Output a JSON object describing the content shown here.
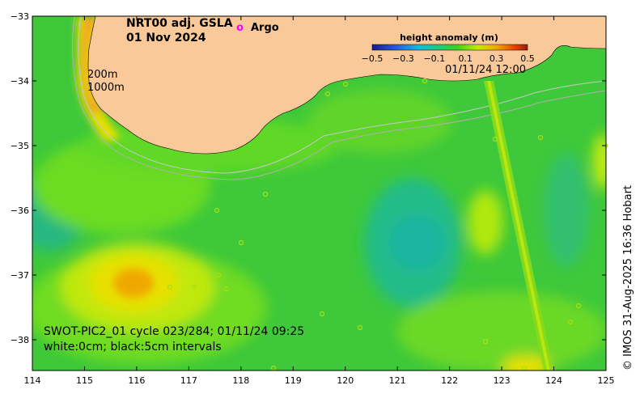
{
  "title": {
    "line1": "NRT00 adj. GSLA",
    "line2": "01 Nov 2024"
  },
  "legend": {
    "argo_symbol": "o",
    "argo_label": "Argo",
    "argo_color": "#ff00ff"
  },
  "colorbar": {
    "title": "height anomaly (m)",
    "ticks": [
      "−0.5",
      "−0.3",
      "−0.1",
      "0.1",
      "0.3",
      "0.5"
    ],
    "timestamp": "01/11/24 12:00"
  },
  "contours": {
    "label_200m": "200m",
    "label_1000m": "1000m"
  },
  "axes": {
    "x_ticks": [
      "114",
      "115",
      "116",
      "117",
      "118",
      "119",
      "120",
      "121",
      "122",
      "123",
      "124",
      "125"
    ],
    "y_ticks": [
      "−33",
      "−34",
      "−35",
      "−36",
      "−37",
      "−38"
    ]
  },
  "footer": {
    "line1": "SWOT-PIC2_01 cycle 023/284; 01/11/24 09:25",
    "line2": "white:0cm; black:5cm intervals"
  },
  "credit": "© IMOS 31-Aug-2025 16:36 Hobart",
  "colors": {
    "land": "#f9c99a",
    "ocean_base": "#3ec83a",
    "bright_green": "#66e020",
    "yellow_green": "#a8e810",
    "yellow": "#e8e800",
    "orange": "#f0a000",
    "teal": "#20b890"
  }
}
